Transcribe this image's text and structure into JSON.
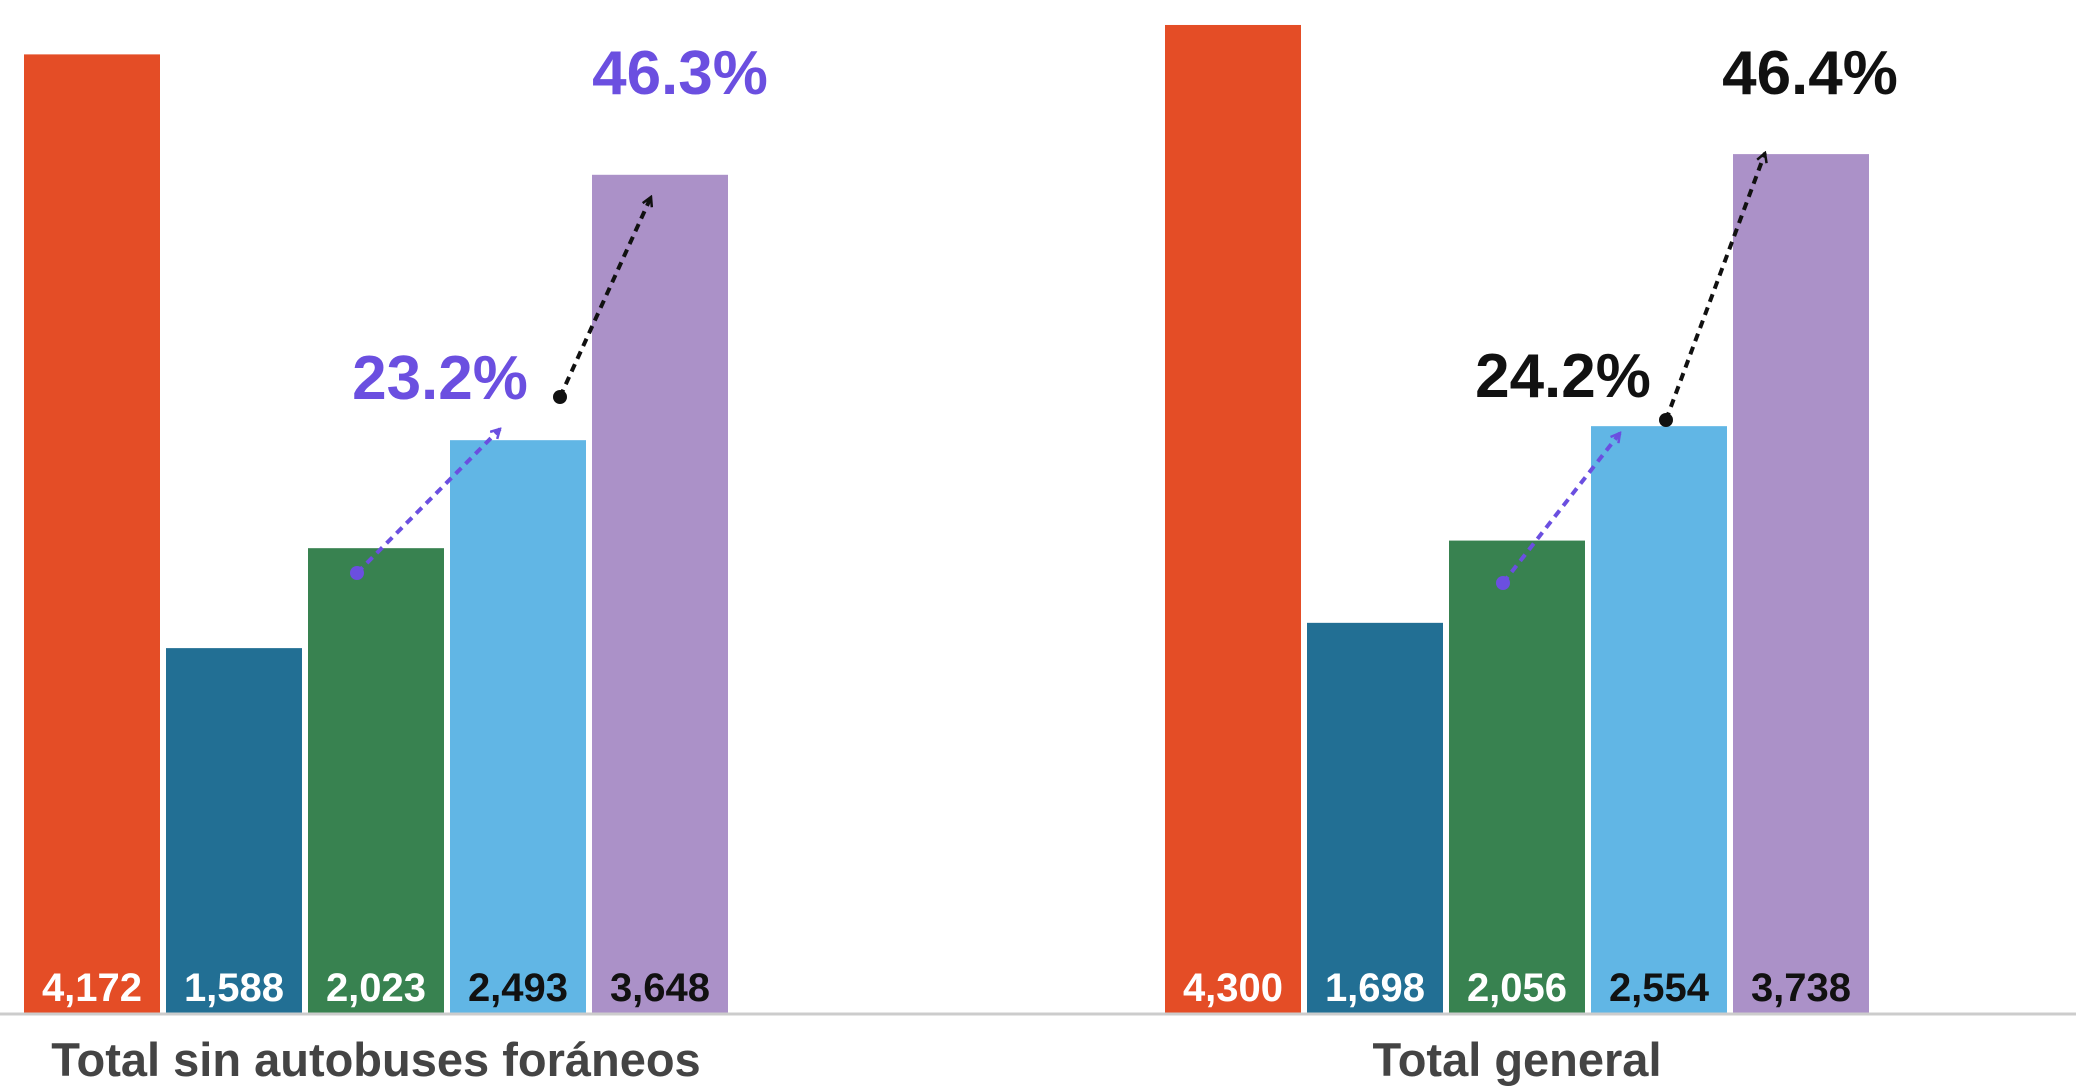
{
  "chart_data": {
    "type": "bar",
    "categories": [
      "Total sin autobuses foráneos",
      "Total general"
    ],
    "series": [
      {
        "values": [
          4172,
          4300
        ],
        "labels": [
          "4,172",
          "4,300"
        ],
        "color": "#E44D26",
        "label_color": "#ffffff"
      },
      {
        "values": [
          1588,
          1698
        ],
        "labels": [
          "1,588",
          "1,698"
        ],
        "color": "#226F94",
        "label_color": "#ffffff"
      },
      {
        "values": [
          2023,
          2056
        ],
        "labels": [
          "2,023",
          "2,056"
        ],
        "color": "#388250",
        "label_color": "#ffffff"
      },
      {
        "values": [
          2493,
          2554
        ],
        "labels": [
          "2,493",
          "2,554"
        ],
        "color": "#61B6E5",
        "label_color": "#111111"
      },
      {
        "values": [
          3648,
          3738
        ],
        "labels": [
          "3,648",
          "3,738"
        ],
        "color": "#AB91C8",
        "label_color": "#111111"
      }
    ],
    "annotations": [
      {
        "group": 0,
        "from_series": 2,
        "to_series": 3,
        "text": "23.2%",
        "color": "#6B4FE0"
      },
      {
        "group": 0,
        "from_series": 3,
        "to_series": 4,
        "text": "46.3%",
        "color": "#6B4FE0",
        "arrow_color": "#111111"
      },
      {
        "group": 1,
        "from_series": 2,
        "to_series": 3,
        "text": "24.2%",
        "color": "#111111",
        "arrow_color": "#6B4FE0"
      },
      {
        "group": 1,
        "from_series": 3,
        "to_series": 4,
        "text": "46.4%",
        "color": "#111111"
      }
    ],
    "ylim": [
      0,
      4400
    ],
    "axis_color": "#cccccc",
    "grid": false,
    "legend": "none"
  }
}
